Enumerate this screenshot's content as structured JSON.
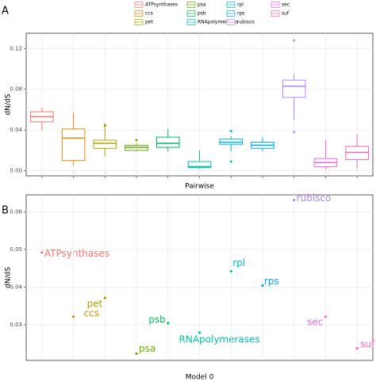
{
  "chart_data": [
    {
      "type": "box",
      "panel_label": "A",
      "x_label": "Pairwise",
      "y_label": "dN/dS",
      "categories": [
        "ATPsynthases",
        "ccs",
        "pet",
        "psa",
        "psb",
        "RNApolymerases",
        "rpl",
        "rps",
        "rubisco",
        "sec",
        "suf"
      ],
      "colors": [
        "#F8766D",
        "#DB8E00",
        "#AEA200",
        "#64B200",
        "#00BD5C",
        "#00C1A7",
        "#00BADE",
        "#00A6FF",
        "#B385FF",
        "#EF67EB",
        "#FF63B6"
      ],
      "boxes": [
        {
          "min": 0.04,
          "q1": 0.048,
          "median": 0.053,
          "q3": 0.058,
          "max": 0.062,
          "outliers": []
        },
        {
          "min": 0.005,
          "q1": 0.01,
          "median": 0.032,
          "q3": 0.041,
          "max": 0.057,
          "outliers": []
        },
        {
          "min": 0.014,
          "q1": 0.022,
          "median": 0.027,
          "q3": 0.03,
          "max": 0.042,
          "outliers": [
            0.045,
            0.044
          ]
        },
        {
          "min": 0.019,
          "q1": 0.02,
          "median": 0.023,
          "q3": 0.025,
          "max": 0.027,
          "outliers": [
            0.03
          ]
        },
        {
          "min": 0.019,
          "q1": 0.023,
          "median": 0.027,
          "q3": 0.033,
          "max": 0.041,
          "outliers": []
        },
        {
          "min": 0.002,
          "q1": 0.003,
          "median": 0.004,
          "q3": 0.009,
          "max": 0.02,
          "outliers": []
        },
        {
          "min": 0.019,
          "q1": 0.026,
          "median": 0.028,
          "q3": 0.031,
          "max": 0.034,
          "outliers": [
            0.039,
            0.009
          ]
        },
        {
          "min": 0.019,
          "q1": 0.022,
          "median": 0.025,
          "q3": 0.028,
          "max": 0.033,
          "outliers": []
        },
        {
          "min": 0.05,
          "q1": 0.072,
          "median": 0.083,
          "q3": 0.089,
          "max": 0.095,
          "outliers": [
            0.128,
            0.038
          ]
        },
        {
          "min": 0.001,
          "q1": 0.004,
          "median": 0.008,
          "q3": 0.012,
          "max": 0.03,
          "outliers": []
        },
        {
          "min": 0.002,
          "q1": 0.011,
          "median": 0.018,
          "q3": 0.024,
          "max": 0.036,
          "outliers": []
        }
      ],
      "ylim": [
        -0.005,
        0.135
      ],
      "yticks": [
        {
          "value": 0,
          "label": "0.00"
        },
        {
          "value": 0.04,
          "label": "0.04"
        },
        {
          "value": 0.08,
          "label": "0.08"
        },
        {
          "value": 0.12,
          "label": "0.12"
        }
      ],
      "grid": true
    },
    {
      "type": "scatter",
      "panel_label": "B",
      "x_label": "Model 0",
      "y_label": "dN/dS",
      "categories": [
        "ATPsynthases",
        "ccs",
        "pet",
        "psa",
        "psb",
        "RNApolymerases",
        "rpl",
        "rps",
        "rubisco",
        "sec",
        "suf"
      ],
      "colors": [
        "#F8766D",
        "#DB8E00",
        "#AEA200",
        "#64B200",
        "#00BD5C",
        "#00C1A7",
        "#00BADE",
        "#00A6FF",
        "#B385FF",
        "#EF67EB",
        "#FF63B6"
      ],
      "values": [
        0.0492,
        0.0321,
        0.0371,
        0.0223,
        0.0304,
        0.0279,
        0.0442,
        0.0404,
        0.0631,
        0.0321,
        0.0237
      ],
      "ylim": [
        0.0205,
        0.0645
      ],
      "yticks": [
        0.03,
        0.04,
        0.05,
        0.06
      ],
      "grid": true
    }
  ]
}
